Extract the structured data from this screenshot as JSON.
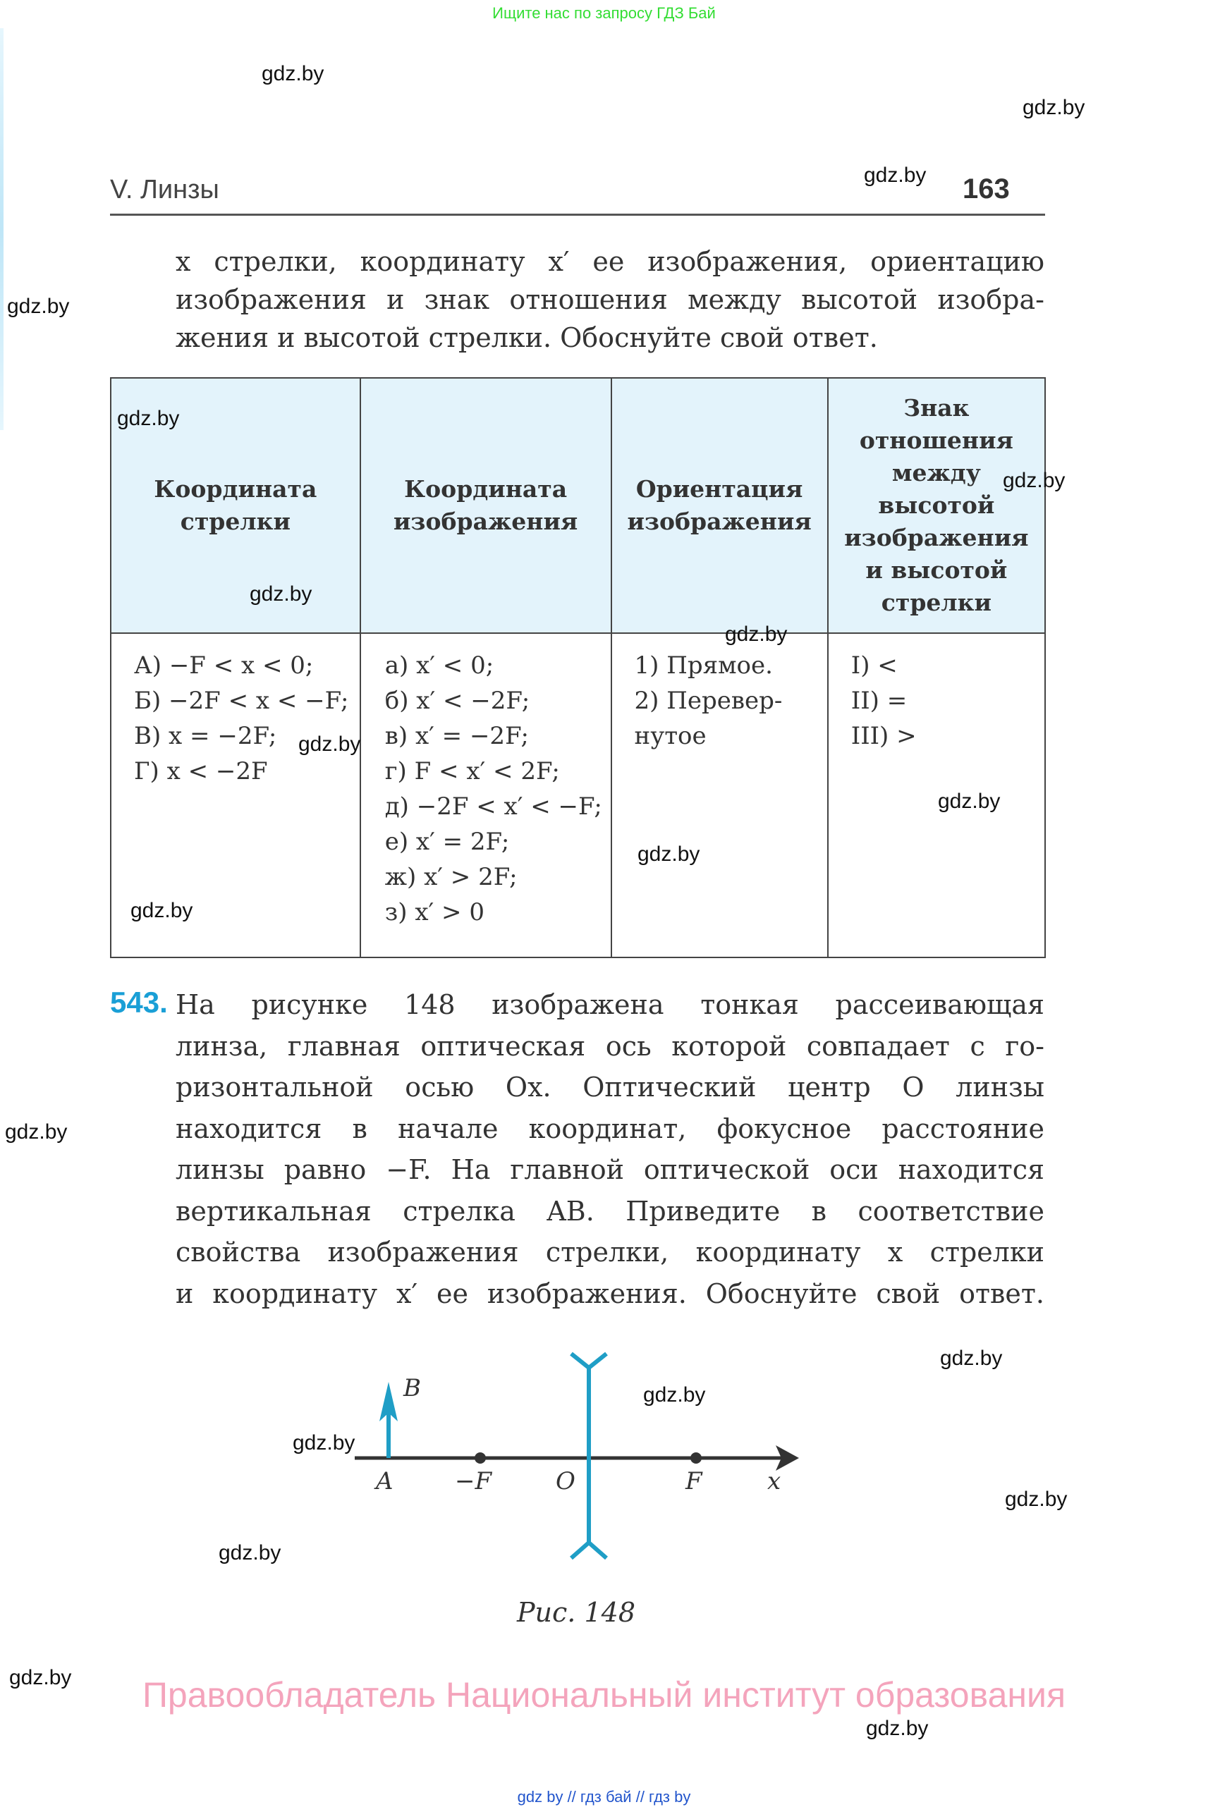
{
  "top_note": "Ищите нас по запросу ГДЗ Бай",
  "header": {
    "chapter": "V. Линзы",
    "page_number": "163"
  },
  "intro_lines": [
    "x стрелки, координату x′ ее изображения, ориентацию",
    "изображения и знак отношения между высотой изобра-",
    "жения и высотой стрелки. Обоснуйте свой ответ."
  ],
  "table": {
    "headers": [
      [
        "Координата",
        "стрелки"
      ],
      [
        "Координата",
        "изображения"
      ],
      [
        "Ориентация",
        "изображения"
      ],
      [
        "Знак",
        "отношения",
        "между",
        "высотой",
        "изображения",
        "и высотой",
        "стрелки"
      ]
    ],
    "columns": [
      [
        "А) −F < x < 0;",
        "Б) −2F < x < −F;",
        "В) x = −2F;",
        "Г) x < −2F"
      ],
      [
        "а) x′ < 0;",
        "б) x′ < −2F;",
        "в) x′ = −2F;",
        "г) F < x′ < 2F;",
        "д) −2F < x′ < −F;",
        "е) x′ = 2F;",
        "ж) x′ > 2F;",
        "з) x′ > 0"
      ],
      [
        "1) Прямое.",
        "2) Перевер-",
        "нутое"
      ],
      [
        "I) <",
        "II) =",
        "III) >"
      ]
    ],
    "header_bg": "#e3f3fb"
  },
  "problem": {
    "number": "543.",
    "number_color": "#1a9fd6",
    "lines": [
      "На рисунке 148 изображена тонкая рассеивающая",
      "линза, главная оптическая ось которой совпадает с го-",
      "ризонтальной осью Ox. Оптический центр O линзы",
      "находится в начале координат, фокусное расстояние",
      "линзы равно −F. На главной оптической оси находится",
      "вертикальная стрелка AB. Приведите в соответствие",
      "свойства изображения стрелки, координату x стрелки",
      "и координату x′ ее изображения. Обоснуйте свой ответ."
    ]
  },
  "figure": {
    "labels": {
      "A": "A",
      "B": "B",
      "minusF": "−F",
      "O": "O",
      "F": "F",
      "x": "x"
    },
    "caption": "Рис. 148",
    "lens_color": "#1f9ec6",
    "axis_color": "#333333"
  },
  "copyright": "Правообладатель Национальный институт образования",
  "footer": "gdz by  //  гдз бай  //  гдз by",
  "watermark": "gdz.by"
}
